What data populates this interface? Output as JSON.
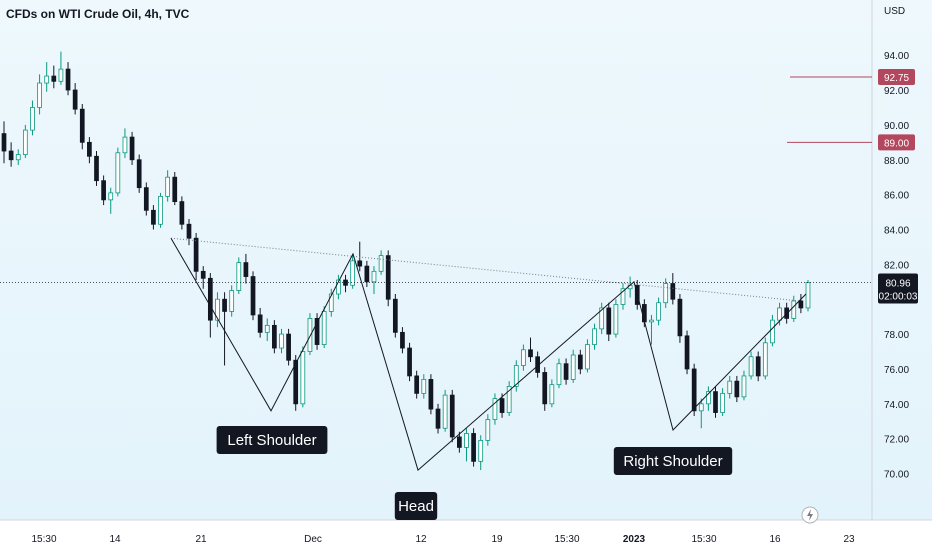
{
  "title": "CFDs on WTI Crude Oil, 4h, TVC",
  "currency": "USD",
  "chart_data": {
    "type": "candlestick",
    "y_axis": {
      "ticks": [
        "94.00",
        "92.00",
        "90.00",
        "88.00",
        "86.00",
        "84.00",
        "82.00",
        "80.00",
        "78.00",
        "76.00",
        "74.00",
        "72.00",
        "70.00"
      ],
      "range": [
        69,
        95.5
      ]
    },
    "x_axis": {
      "ticks": [
        "15:30",
        "14",
        "21",
        "Dec",
        "12",
        "19",
        "15:30",
        "2023",
        "15:30",
        "16",
        "23"
      ]
    },
    "price_labels": [
      {
        "value": "92.75",
        "color": "#b2475e"
      },
      {
        "value": "89.00",
        "color": "#b2475e"
      }
    ],
    "last_price": {
      "value": "80.96",
      "countdown": "02:00:03",
      "color": "#131722"
    },
    "annotations": [
      {
        "text": "Left Shoulder"
      },
      {
        "text": "Head"
      },
      {
        "text": "Right Shoulder"
      }
    ],
    "pattern_path_prices": [
      83.5,
      73.6,
      82.6,
      70.2,
      81.0,
      72.5,
      80.3
    ],
    "neckline_prices": [
      83.5,
      79.9
    ],
    "series": [
      {
        "values": [
          {
            "o": 89.5,
            "h": 90.2,
            "l": 87.8,
            "c": 88.5
          },
          {
            "o": 88.5,
            "h": 89.0,
            "l": 87.6,
            "c": 88.0
          },
          {
            "o": 88.0,
            "h": 88.6,
            "l": 87.7,
            "c": 88.3
          },
          {
            "o": 88.3,
            "h": 90.0,
            "l": 88.1,
            "c": 89.7
          },
          {
            "o": 89.7,
            "h": 91.4,
            "l": 89.4,
            "c": 91.0
          },
          {
            "o": 91.0,
            "h": 92.9,
            "l": 90.6,
            "c": 92.4
          },
          {
            "o": 92.4,
            "h": 93.6,
            "l": 91.9,
            "c": 92.8
          },
          {
            "o": 92.8,
            "h": 93.4,
            "l": 92.1,
            "c": 92.5
          },
          {
            "o": 92.5,
            "h": 94.2,
            "l": 92.3,
            "c": 93.2
          },
          {
            "o": 93.2,
            "h": 93.6,
            "l": 91.7,
            "c": 92.0
          },
          {
            "o": 92.0,
            "h": 92.4,
            "l": 90.6,
            "c": 90.9
          },
          {
            "o": 90.9,
            "h": 91.2,
            "l": 88.6,
            "c": 89.0
          },
          {
            "o": 89.0,
            "h": 89.3,
            "l": 87.8,
            "c": 88.2
          },
          {
            "o": 88.2,
            "h": 88.5,
            "l": 86.5,
            "c": 86.8
          },
          {
            "o": 86.8,
            "h": 87.1,
            "l": 85.4,
            "c": 85.7
          },
          {
            "o": 85.7,
            "h": 86.4,
            "l": 84.9,
            "c": 86.1
          },
          {
            "o": 86.1,
            "h": 88.7,
            "l": 85.9,
            "c": 88.4
          },
          {
            "o": 88.4,
            "h": 89.8,
            "l": 88.1,
            "c": 89.3
          },
          {
            "o": 89.3,
            "h": 89.6,
            "l": 87.7,
            "c": 88.0
          },
          {
            "o": 88.0,
            "h": 88.3,
            "l": 86.1,
            "c": 86.4
          },
          {
            "o": 86.4,
            "h": 86.7,
            "l": 84.8,
            "c": 85.1
          },
          {
            "o": 85.1,
            "h": 85.4,
            "l": 84.0,
            "c": 84.3
          },
          {
            "o": 84.3,
            "h": 86.1,
            "l": 84.1,
            "c": 85.9
          },
          {
            "o": 85.9,
            "h": 87.4,
            "l": 85.6,
            "c": 87.0
          },
          {
            "o": 87.0,
            "h": 87.3,
            "l": 85.4,
            "c": 85.6
          },
          {
            "o": 85.6,
            "h": 85.9,
            "l": 84.0,
            "c": 84.3
          },
          {
            "o": 84.3,
            "h": 84.6,
            "l": 83.1,
            "c": 83.5
          },
          {
            "o": 83.5,
            "h": 83.8,
            "l": 81.1,
            "c": 81.6
          },
          {
            "o": 81.6,
            "h": 81.9,
            "l": 80.6,
            "c": 81.2
          },
          {
            "o": 81.2,
            "h": 81.5,
            "l": 77.8,
            "c": 78.8
          },
          {
            "o": 78.8,
            "h": 80.4,
            "l": 78.4,
            "c": 80.0
          },
          {
            "o": 80.0,
            "h": 80.4,
            "l": 76.2,
            "c": 79.3
          },
          {
            "o": 79.3,
            "h": 80.8,
            "l": 79.0,
            "c": 80.5
          },
          {
            "o": 80.5,
            "h": 82.4,
            "l": 80.3,
            "c": 82.1
          },
          {
            "o": 82.1,
            "h": 82.6,
            "l": 80.9,
            "c": 81.3
          },
          {
            "o": 81.3,
            "h": 81.6,
            "l": 78.8,
            "c": 79.1
          },
          {
            "o": 79.1,
            "h": 79.5,
            "l": 77.8,
            "c": 78.1
          },
          {
            "o": 78.1,
            "h": 78.9,
            "l": 77.6,
            "c": 78.5
          },
          {
            "o": 78.5,
            "h": 78.8,
            "l": 76.9,
            "c": 77.2
          },
          {
            "o": 77.2,
            "h": 78.3,
            "l": 76.9,
            "c": 78.0
          },
          {
            "o": 78.0,
            "h": 78.3,
            "l": 76.2,
            "c": 76.5
          },
          {
            "o": 76.5,
            "h": 76.8,
            "l": 73.6,
            "c": 74.0
          },
          {
            "o": 74.0,
            "h": 77.3,
            "l": 73.8,
            "c": 77.0
          },
          {
            "o": 77.0,
            "h": 79.2,
            "l": 76.8,
            "c": 78.9
          },
          {
            "o": 78.9,
            "h": 79.2,
            "l": 77.1,
            "c": 77.4
          },
          {
            "o": 77.4,
            "h": 79.6,
            "l": 77.2,
            "c": 79.3
          },
          {
            "o": 79.3,
            "h": 80.6,
            "l": 79.0,
            "c": 80.3
          },
          {
            "o": 80.3,
            "h": 81.4,
            "l": 80.0,
            "c": 81.1
          },
          {
            "o": 81.1,
            "h": 81.4,
            "l": 80.4,
            "c": 80.8
          },
          {
            "o": 80.8,
            "h": 82.6,
            "l": 80.6,
            "c": 82.2
          },
          {
            "o": 82.2,
            "h": 83.3,
            "l": 81.6,
            "c": 81.9
          },
          {
            "o": 81.9,
            "h": 82.2,
            "l": 80.7,
            "c": 81.0
          },
          {
            "o": 81.0,
            "h": 81.9,
            "l": 80.3,
            "c": 81.6
          },
          {
            "o": 81.6,
            "h": 82.8,
            "l": 81.4,
            "c": 82.5
          },
          {
            "o": 82.5,
            "h": 82.8,
            "l": 79.6,
            "c": 80.0
          },
          {
            "o": 80.0,
            "h": 80.3,
            "l": 77.8,
            "c": 78.1
          },
          {
            "o": 78.1,
            "h": 78.4,
            "l": 76.9,
            "c": 77.2
          },
          {
            "o": 77.2,
            "h": 77.5,
            "l": 75.3,
            "c": 75.6
          },
          {
            "o": 75.6,
            "h": 75.9,
            "l": 74.3,
            "c": 74.6
          },
          {
            "o": 74.6,
            "h": 75.7,
            "l": 74.3,
            "c": 75.4
          },
          {
            "o": 75.4,
            "h": 75.7,
            "l": 73.4,
            "c": 73.7
          },
          {
            "o": 73.7,
            "h": 74.0,
            "l": 72.3,
            "c": 72.6
          },
          {
            "o": 72.6,
            "h": 74.8,
            "l": 72.4,
            "c": 74.5
          },
          {
            "o": 74.5,
            "h": 74.8,
            "l": 71.8,
            "c": 72.1
          },
          {
            "o": 72.1,
            "h": 72.4,
            "l": 71.2,
            "c": 71.5
          },
          {
            "o": 71.5,
            "h": 72.6,
            "l": 70.7,
            "c": 72.3
          },
          {
            "o": 72.3,
            "h": 72.6,
            "l": 70.4,
            "c": 70.7
          },
          {
            "o": 70.7,
            "h": 72.2,
            "l": 70.2,
            "c": 71.9
          },
          {
            "o": 71.9,
            "h": 73.4,
            "l": 71.6,
            "c": 73.1
          },
          {
            "o": 73.1,
            "h": 74.6,
            "l": 72.8,
            "c": 74.3
          },
          {
            "o": 74.3,
            "h": 74.6,
            "l": 73.2,
            "c": 73.5
          },
          {
            "o": 73.5,
            "h": 75.3,
            "l": 73.3,
            "c": 75.0
          },
          {
            "o": 75.0,
            "h": 76.5,
            "l": 74.7,
            "c": 76.2
          },
          {
            "o": 76.2,
            "h": 77.4,
            "l": 75.9,
            "c": 77.1
          },
          {
            "o": 77.1,
            "h": 77.8,
            "l": 76.4,
            "c": 76.7
          },
          {
            "o": 76.7,
            "h": 77.0,
            "l": 75.5,
            "c": 75.8
          },
          {
            "o": 75.8,
            "h": 76.1,
            "l": 73.6,
            "c": 74.0
          },
          {
            "o": 74.0,
            "h": 75.4,
            "l": 73.8,
            "c": 75.1
          },
          {
            "o": 75.1,
            "h": 76.6,
            "l": 74.9,
            "c": 76.3
          },
          {
            "o": 76.3,
            "h": 76.6,
            "l": 75.1,
            "c": 75.4
          },
          {
            "o": 75.4,
            "h": 77.1,
            "l": 75.2,
            "c": 76.8
          },
          {
            "o": 76.8,
            "h": 77.1,
            "l": 75.7,
            "c": 76.0
          },
          {
            "o": 76.0,
            "h": 77.7,
            "l": 75.8,
            "c": 77.4
          },
          {
            "o": 77.4,
            "h": 78.6,
            "l": 77.1,
            "c": 78.3
          },
          {
            "o": 78.3,
            "h": 79.8,
            "l": 78.0,
            "c": 79.5
          },
          {
            "o": 79.5,
            "h": 79.8,
            "l": 77.6,
            "c": 78.0
          },
          {
            "o": 78.0,
            "h": 80.0,
            "l": 77.8,
            "c": 79.7
          },
          {
            "o": 79.7,
            "h": 80.9,
            "l": 79.4,
            "c": 80.6
          },
          {
            "o": 80.6,
            "h": 81.3,
            "l": 80.1,
            "c": 80.8
          },
          {
            "o": 80.8,
            "h": 81.1,
            "l": 79.4,
            "c": 79.7
          },
          {
            "o": 79.7,
            "h": 80.0,
            "l": 78.4,
            "c": 78.7
          },
          {
            "o": 78.7,
            "h": 79.1,
            "l": 77.4,
            "c": 78.8
          },
          {
            "o": 78.8,
            "h": 80.1,
            "l": 78.5,
            "c": 79.8
          },
          {
            "o": 79.8,
            "h": 81.2,
            "l": 79.5,
            "c": 80.9
          },
          {
            "o": 80.9,
            "h": 81.5,
            "l": 79.7,
            "c": 80.0
          },
          {
            "o": 80.0,
            "h": 80.3,
            "l": 77.5,
            "c": 77.9
          },
          {
            "o": 77.9,
            "h": 78.2,
            "l": 75.7,
            "c": 76.0
          },
          {
            "o": 76.0,
            "h": 76.3,
            "l": 73.3,
            "c": 73.6
          },
          {
            "o": 73.6,
            "h": 74.3,
            "l": 72.6,
            "c": 74.0
          },
          {
            "o": 74.0,
            "h": 75.0,
            "l": 73.6,
            "c": 74.7
          },
          {
            "o": 74.7,
            "h": 75.0,
            "l": 73.2,
            "c": 73.5
          },
          {
            "o": 73.5,
            "h": 74.9,
            "l": 73.3,
            "c": 74.6
          },
          {
            "o": 74.6,
            "h": 75.6,
            "l": 74.3,
            "c": 75.3
          },
          {
            "o": 75.3,
            "h": 75.6,
            "l": 74.1,
            "c": 74.4
          },
          {
            "o": 74.4,
            "h": 75.9,
            "l": 74.2,
            "c": 75.6
          },
          {
            "o": 75.6,
            "h": 77.0,
            "l": 75.4,
            "c": 76.7
          },
          {
            "o": 76.7,
            "h": 77.0,
            "l": 75.3,
            "c": 75.6
          },
          {
            "o": 75.6,
            "h": 77.8,
            "l": 75.4,
            "c": 77.5
          },
          {
            "o": 77.5,
            "h": 79.1,
            "l": 77.3,
            "c": 78.8
          },
          {
            "o": 78.8,
            "h": 79.8,
            "l": 78.5,
            "c": 79.5
          },
          {
            "o": 79.5,
            "h": 79.8,
            "l": 78.6,
            "c": 78.9
          },
          {
            "o": 78.9,
            "h": 80.2,
            "l": 78.7,
            "c": 79.9
          },
          {
            "o": 79.9,
            "h": 80.3,
            "l": 79.2,
            "c": 79.5
          },
          {
            "o": 79.5,
            "h": 81.1,
            "l": 79.3,
            "c": 80.96
          }
        ]
      }
    ]
  }
}
